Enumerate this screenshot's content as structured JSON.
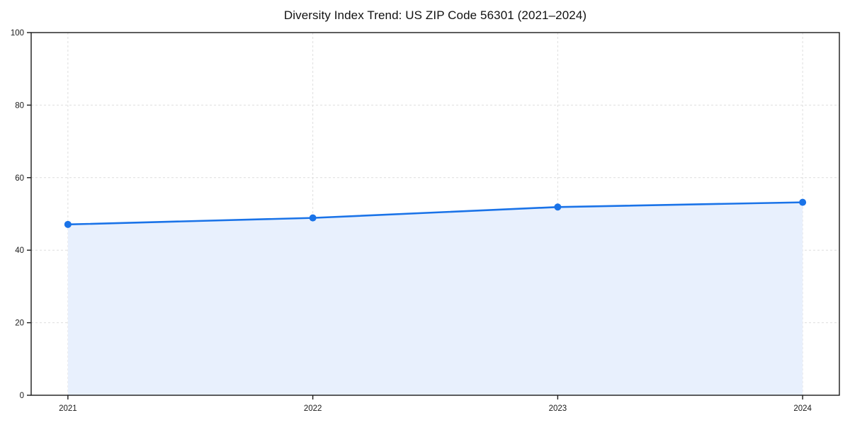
{
  "chart_data": {
    "type": "area",
    "title": "Diversity Index Trend: US ZIP Code 56301 (2021–2024)",
    "xlabel": "",
    "ylabel": "",
    "x": [
      2021,
      2022,
      2023,
      2024
    ],
    "series": [
      {
        "name": "Diversity Index",
        "values": [
          47.1,
          48.9,
          51.9,
          53.2
        ]
      }
    ],
    "xticks": [
      2021,
      2022,
      2023,
      2024
    ],
    "xtick_labels": [
      "2021",
      "2022",
      "2023",
      "2024"
    ],
    "yticks": [
      0,
      20,
      40,
      60,
      80,
      100
    ],
    "ytick_labels": [
      "0",
      "20",
      "40",
      "60",
      "80",
      "100"
    ],
    "xlim": [
      2020.85,
      2024.15
    ],
    "ylim": [
      0,
      100
    ],
    "grid": true,
    "legend": false,
    "marker": "circle",
    "colors": {
      "line": "#1a73e8",
      "marker": "#1a73e8",
      "fill": "#e8f0fd",
      "grid": "#dedede",
      "spine": "#1a1a1a",
      "tick": "#1a1a1a",
      "tick_label": "#1a1a1a",
      "title": "#111111",
      "background": "#ffffff"
    }
  }
}
